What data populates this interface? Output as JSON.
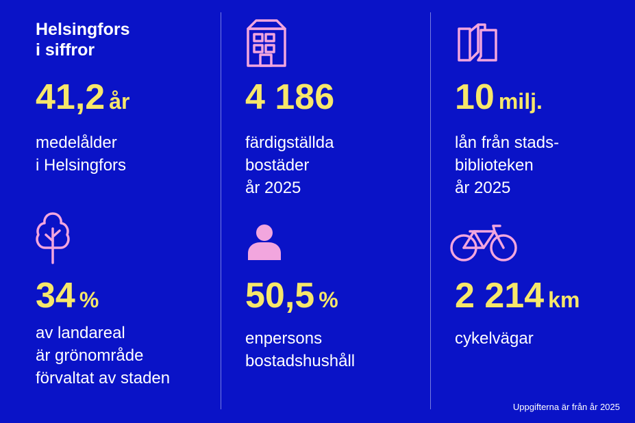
{
  "title": {
    "line1": "Helsingfors",
    "line2": "i siffror"
  },
  "stats": [
    {
      "number": "41,2",
      "unit": "år",
      "lines": [
        "medelålder",
        "i Helsingfors"
      ]
    },
    {
      "number": "4 186",
      "unit": "",
      "lines": [
        "färdigställda",
        "bostäder",
        "år 2025"
      ],
      "icon": "building-icon"
    },
    {
      "number": "10",
      "unit": "milj.",
      "lines": [
        "lån från stads-",
        "biblioteken",
        "år 2025"
      ],
      "icon": "book-icon"
    },
    {
      "number": "34",
      "unit": "%",
      "lines": [
        "av landareal",
        "är grönområde",
        "förvaltat av staden"
      ],
      "icon": "tree-icon"
    },
    {
      "number": "50,5",
      "unit": "%",
      "lines": [
        "enpersons",
        "bostadshushåll"
      ],
      "icon": "person-icon"
    },
    {
      "number": "2 214",
      "unit": "km",
      "lines": [
        "cykelvägar"
      ],
      "icon": "bicycle-icon"
    }
  ],
  "footnote": "Uppgifterna är från år 2025",
  "colors": {
    "background": "#0a13c7",
    "accent_yellow": "#f7e76a",
    "icon_pink": "#f2a6de",
    "text": "#ffffff"
  }
}
